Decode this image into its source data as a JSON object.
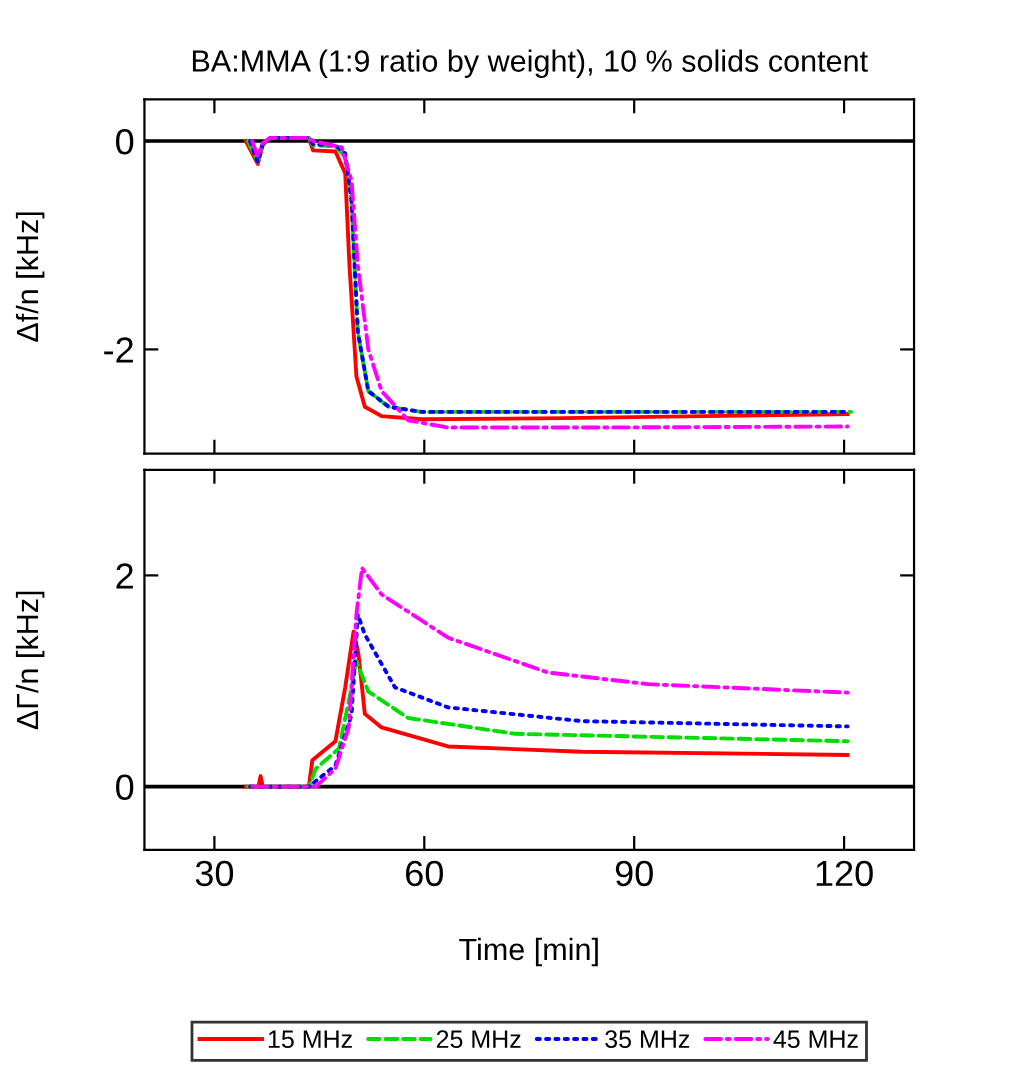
{
  "chart_data": [
    {
      "type": "line",
      "title": "BA:MMA (1:9 ratio by weight), 10 % solids content",
      "ylabel": "Δf/n [kHz]",
      "xlim": [
        20,
        130
      ],
      "xticks": [
        30,
        60,
        90,
        120
      ],
      "ylim": [
        -3,
        0.4
      ],
      "yticks": [
        {
          "value": -2,
          "label": "-2"
        },
        0
      ],
      "tick_labels": "y",
      "grid": false,
      "marker": "none",
      "ref_lines": [
        {
          "axis": "y",
          "value": 0,
          "color": "#000000",
          "line_style": "solid"
        }
      ],
      "series": [
        {
          "color": "#ff0000",
          "line_style": "solid",
          "x": [
            34.5,
            36.2,
            36.9,
            38,
            43.5,
            44.1,
            47.3,
            48.7,
            49.3,
            50.3,
            51.5,
            53.9,
            59.6,
            80,
            100,
            120.5
          ],
          "values": [
            0,
            -0.22,
            -0.04,
            0.03,
            0.03,
            -0.09,
            -0.1,
            -0.31,
            -1.19,
            -2.26,
            -2.55,
            -2.64,
            -2.67,
            -2.66,
            -2.64,
            -2.62
          ]
        },
        {
          "color": "#00dd00",
          "line_style": "dashed",
          "x": [
            34.8,
            36.2,
            36.9,
            38,
            43.5,
            44.1,
            47.3,
            48.7,
            49.6,
            50.5,
            52,
            54.9,
            59.6,
            90,
            121
          ],
          "values": [
            0,
            -0.2,
            -0.03,
            0.03,
            0.03,
            -0.04,
            -0.05,
            -0.15,
            -0.57,
            -1.83,
            -2.4,
            -2.55,
            -2.6,
            -2.6,
            -2.6
          ]
        },
        {
          "color": "#0000ff",
          "line_style": "dotted",
          "x": [
            35.1,
            36.2,
            36.9,
            38,
            43.5,
            44.1,
            47.3,
            48.7,
            49.6,
            50.5,
            52,
            54.9,
            59.6,
            90,
            120
          ],
          "values": [
            0,
            -0.2,
            -0.03,
            0.03,
            0.03,
            -0.03,
            -0.04,
            -0.12,
            -0.57,
            -1.83,
            -2.4,
            -2.55,
            -2.6,
            -2.6,
            -2.6
          ]
        },
        {
          "color": "#ff00ff",
          "line_style": "dashdot",
          "x": [
            35.4,
            36.2,
            36.9,
            38,
            43.5,
            44.1,
            48.2,
            49.6,
            50.5,
            52,
            53.9,
            57.7,
            63.4,
            82.5,
            120.5
          ],
          "values": [
            0,
            -0.15,
            -0.02,
            0.03,
            0.03,
            0.0,
            -0.06,
            -0.38,
            -1.19,
            -2.0,
            -2.4,
            -2.68,
            -2.75,
            -2.75,
            -2.74
          ]
        }
      ]
    },
    {
      "type": "line",
      "xlabel": "Time [min]",
      "ylabel": "ΔΓ/n [kHz]",
      "xlim": [
        20,
        130
      ],
      "xticks": [
        30,
        60,
        90,
        120
      ],
      "ylim": [
        -0.6,
        3
      ],
      "yticks": [
        0,
        2
      ],
      "legend": "bottom",
      "grid": false,
      "marker": "none",
      "ref_lines": [
        {
          "axis": "y",
          "value": 0,
          "color": "#000000",
          "line_style": "solid"
        }
      ],
      "series": [
        {
          "name": "15 MHz",
          "color": "#ff0000",
          "line_style": "solid",
          "x": [
            34.5,
            36.3,
            36.6,
            36.9,
            43.5,
            44.0,
            47.3,
            48.7,
            49.9,
            50.6,
            51.5,
            53.9,
            63.4,
            82.5,
            120.5
          ],
          "values": [
            0,
            0,
            0.1,
            0,
            0,
            0.25,
            0.43,
            0.94,
            1.47,
            1.25,
            0.69,
            0.56,
            0.38,
            0.33,
            0.3
          ]
        },
        {
          "name": "25 MHz",
          "color": "#00dd00",
          "line_style": "dashed",
          "x": [
            34.8,
            43.5,
            44.5,
            47.8,
            49.4,
            50.3,
            52,
            57.7,
            73,
            120.5
          ],
          "values": [
            0,
            0,
            0.17,
            0.36,
            0.87,
            1.19,
            0.9,
            0.65,
            0.5,
            0.43
          ]
        },
        {
          "name": "35 MHz",
          "color": "#0000ff",
          "line_style": "dotted",
          "x": [
            35.1,
            43.5,
            47.3,
            49.6,
            50.5,
            51.5,
            55.8,
            63.4,
            82.5,
            120.5
          ],
          "values": [
            0,
            0,
            0.2,
            0.68,
            1.63,
            1.44,
            0.94,
            0.75,
            0.62,
            0.57
          ]
        },
        {
          "name": "45 MHz",
          "color": "#ff00ff",
          "line_style": "dashdot",
          "x": [
            35.4,
            44.5,
            47.3,
            49.2,
            50.3,
            51.1,
            53.9,
            63.4,
            77.7,
            92,
            120.5
          ],
          "values": [
            0,
            0,
            0.17,
            0.56,
            1.63,
            2.07,
            1.82,
            1.41,
            1.08,
            0.97,
            0.89
          ]
        }
      ]
    }
  ]
}
